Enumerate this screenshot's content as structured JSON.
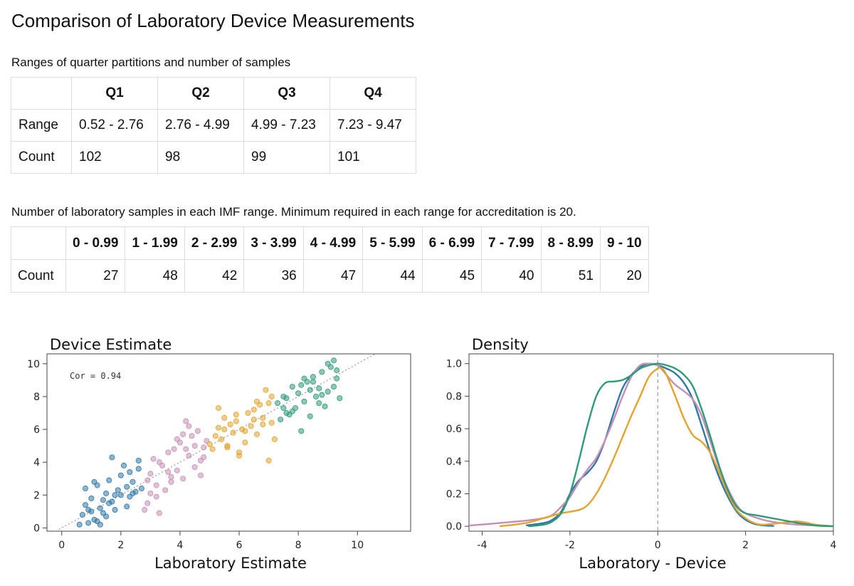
{
  "title": "Comparison of Laboratory Device Measurements",
  "quarter_table": {
    "caption": "Ranges of quarter partitions and number of samples",
    "headers": [
      "Q1",
      "Q2",
      "Q3",
      "Q4"
    ],
    "rows": [
      {
        "label": "Range",
        "cells": [
          "0.52 - 2.76",
          "2.76 - 4.99",
          "4.99 - 7.23",
          "7.23 - 9.47"
        ]
      },
      {
        "label": "Count",
        "cells": [
          "102",
          "98",
          "99",
          "101"
        ]
      }
    ]
  },
  "imf_table": {
    "caption": "Number of laboratory samples in each IMF range. Minimum required in each range for accreditation is 20.",
    "headers": [
      "0 - 0.99",
      "1 - 1.99",
      "2 - 2.99",
      "3 - 3.99",
      "4 - 4.99",
      "5 - 5.99",
      "6 - 6.99",
      "7 - 7.99",
      "8 - 8.99",
      "9 - 10"
    ],
    "rows": [
      {
        "label": "Count",
        "cells": [
          "27",
          "48",
          "42",
          "36",
          "47",
          "44",
          "45",
          "40",
          "51",
          "20"
        ]
      }
    ]
  },
  "colors": {
    "Q1": "#2f78a8",
    "Q2": "#c58fb4",
    "Q3": "#e2a42f",
    "Q4": "#2f9a7a"
  },
  "chart_data": [
    {
      "type": "scatter",
      "title": "Device Estimate",
      "xlabel": "Laboratory Estimate",
      "ylabel": "",
      "annotation": "Cor = 0.94",
      "xlim": [
        -0.5,
        11.8
      ],
      "ylim": [
        -0.2,
        10.6
      ],
      "xticks": [
        0,
        2,
        4,
        6,
        8,
        10
      ],
      "yticks": [
        0,
        2,
        4,
        6,
        8,
        10
      ],
      "reference_line": "y = x (dotted)",
      "series": [
        {
          "group": "Q1",
          "x": [
            0.6,
            0.7,
            0.8,
            0.9,
            1.0,
            1.1,
            1.2,
            1.3,
            1.4,
            1.5,
            1.6,
            1.7,
            1.8,
            1.9,
            2.0,
            2.1,
            2.2,
            2.3,
            2.4,
            2.5,
            2.6,
            2.7,
            0.8,
            1.0,
            1.2,
            1.4,
            1.6,
            1.8,
            2.0,
            2.2,
            2.4,
            1.1,
            1.3,
            1.5,
            0.9,
            1.7,
            2.3,
            2.6
          ],
          "y": [
            0.2,
            0.8,
            1.4,
            0.3,
            1.8,
            0.5,
            2.6,
            1.2,
            0.9,
            2.1,
            1.5,
            4.3,
            1.1,
            2.3,
            2.0,
            3.8,
            2.5,
            1.9,
            2.8,
            2.2,
            3.6,
            2.4,
            2.4,
            1.0,
            0.4,
            1.7,
            2.9,
            2.0,
            3.2,
            1.3,
            2.1,
            2.8,
            0.2,
            0.7,
            1.1,
            1.6,
            3.4,
            4.1
          ]
        },
        {
          "group": "Q2",
          "x": [
            2.8,
            2.9,
            3.0,
            3.1,
            3.2,
            3.3,
            3.4,
            3.5,
            3.6,
            3.7,
            3.8,
            3.9,
            4.0,
            4.1,
            4.2,
            4.3,
            4.4,
            4.5,
            4.6,
            4.7,
            4.8,
            4.9,
            3.0,
            3.3,
            3.6,
            3.9,
            4.2,
            4.5,
            4.8,
            3.2,
            3.7,
            4.3,
            4.7,
            2.9,
            4.1
          ],
          "y": [
            1.1,
            2.9,
            3.3,
            4.2,
            2.6,
            0.9,
            3.8,
            2.3,
            4.6,
            3.1,
            4.8,
            3.5,
            5.2,
            3.0,
            6.5,
            4.4,
            5.6,
            3.7,
            5.9,
            4.1,
            4.9,
            5.3,
            2.1,
            4.0,
            3.4,
            5.4,
            4.8,
            5.0,
            4.3,
            1.9,
            2.8,
            6.2,
            3.2,
            1.5,
            5.7
          ]
        },
        {
          "group": "Q3",
          "x": [
            5.0,
            5.1,
            5.2,
            5.3,
            5.4,
            5.5,
            5.6,
            5.7,
            5.8,
            5.9,
            6.0,
            6.1,
            6.2,
            6.3,
            6.4,
            6.5,
            6.6,
            6.7,
            6.8,
            6.9,
            7.0,
            7.1,
            7.2,
            5.3,
            5.6,
            5.9,
            6.2,
            6.5,
            6.8,
            7.1,
            5.5,
            6.0,
            6.6,
            7.0
          ],
          "y": [
            5.1,
            4.8,
            5.6,
            7.3,
            5.4,
            6.0,
            5.0,
            6.3,
            5.8,
            6.5,
            4.6,
            6.0,
            5.9,
            7.0,
            6.2,
            6.6,
            5.7,
            7.5,
            6.7,
            8.4,
            7.6,
            6.4,
            5.4,
            6.1,
            4.9,
            6.9,
            5.2,
            7.2,
            6.3,
            8.0,
            6.7,
            4.4,
            7.7,
            4.1
          ]
        },
        {
          "group": "Q4",
          "x": [
            7.3,
            7.4,
            7.5,
            7.6,
            7.7,
            7.8,
            7.9,
            8.0,
            8.1,
            8.2,
            8.3,
            8.4,
            8.5,
            8.6,
            8.7,
            8.8,
            8.9,
            9.0,
            9.1,
            9.2,
            9.3,
            9.4,
            7.5,
            7.8,
            8.1,
            8.4,
            8.7,
            9.0,
            9.3,
            7.6,
            8.2,
            8.8,
            9.2,
            8.5
          ],
          "y": [
            7.6,
            6.6,
            8.0,
            7.9,
            6.9,
            8.6,
            7.3,
            8.2,
            5.9,
            7.7,
            8.9,
            6.8,
            9.2,
            8.0,
            8.5,
            9.5,
            7.4,
            8.3,
            9.8,
            8.6,
            9.1,
            7.9,
            7.3,
            7.1,
            8.7,
            8.4,
            7.6,
            10.0,
            9.6,
            7.0,
            9.1,
            8.1,
            10.2,
            8.9
          ]
        }
      ]
    },
    {
      "type": "line",
      "title": "Density",
      "xlabel": "Laboratory - Device",
      "ylabel": "",
      "xlim": [
        -4.3,
        4.0
      ],
      "ylim": [
        -0.03,
        1.06
      ],
      "xticks": [
        -4,
        -2,
        0,
        2,
        4
      ],
      "yticks": [
        0.0,
        0.2,
        0.4,
        0.6,
        0.8,
        1.0
      ],
      "reference_line": "x = 0 (dashed)",
      "series": [
        {
          "group": "Q1",
          "x": [
            -3.0,
            -2.6,
            -2.4,
            -2.2,
            -2.0,
            -1.8,
            -1.6,
            -1.4,
            -1.2,
            -1.0,
            -0.8,
            -0.6,
            -0.4,
            -0.2,
            0.0,
            0.2,
            0.4,
            0.6,
            0.8,
            1.0,
            1.2,
            1.4,
            1.6,
            1.8,
            2.0,
            2.2,
            2.4,
            2.65
          ],
          "y": [
            0.005,
            0.02,
            0.04,
            0.09,
            0.2,
            0.28,
            0.33,
            0.4,
            0.53,
            0.7,
            0.85,
            0.93,
            0.98,
            1.0,
            0.99,
            0.97,
            0.94,
            0.88,
            0.78,
            0.62,
            0.45,
            0.3,
            0.18,
            0.09,
            0.04,
            0.015,
            0.006,
            0.002
          ]
        },
        {
          "group": "Q2",
          "x": [
            -4.3,
            -3.8,
            -3.4,
            -3.0,
            -2.6,
            -2.4,
            -2.2,
            -2.0,
            -1.8,
            -1.6,
            -1.4,
            -1.2,
            -1.0,
            -0.8,
            -0.6,
            -0.4,
            -0.2,
            0.0,
            0.2,
            0.4,
            0.6,
            0.8,
            1.0,
            1.2,
            1.4,
            1.6,
            1.8,
            2.0,
            2.4,
            2.8,
            3.2,
            3.6,
            4.0
          ],
          "y": [
            0.005,
            0.015,
            0.025,
            0.035,
            0.05,
            0.07,
            0.12,
            0.18,
            0.27,
            0.35,
            0.42,
            0.53,
            0.66,
            0.8,
            0.92,
            0.99,
            1.0,
            0.99,
            0.93,
            0.87,
            0.83,
            0.78,
            0.68,
            0.52,
            0.36,
            0.23,
            0.13,
            0.08,
            0.04,
            0.02,
            0.01,
            0.005,
            0.002
          ]
        },
        {
          "group": "Q3",
          "x": [
            -3.6,
            -3.0,
            -2.6,
            -2.2,
            -1.8,
            -1.6,
            -1.4,
            -1.2,
            -1.0,
            -0.8,
            -0.6,
            -0.4,
            -0.2,
            0.0,
            0.1,
            0.2,
            0.4,
            0.6,
            0.8,
            1.0,
            1.2,
            1.4,
            1.6,
            1.8,
            2.0,
            2.2,
            2.4,
            2.8,
            3.2,
            3.6,
            4.0
          ],
          "y": [
            0.0,
            0.02,
            0.05,
            0.08,
            0.1,
            0.13,
            0.2,
            0.3,
            0.42,
            0.55,
            0.68,
            0.8,
            0.92,
            0.97,
            0.97,
            0.93,
            0.8,
            0.66,
            0.56,
            0.52,
            0.45,
            0.33,
            0.2,
            0.1,
            0.05,
            0.02,
            0.01,
            0.02,
            0.03,
            0.01,
            0.0
          ]
        },
        {
          "group": "Q4",
          "x": [
            -2.95,
            -2.6,
            -2.4,
            -2.2,
            -2.0,
            -1.8,
            -1.6,
            -1.4,
            -1.2,
            -1.0,
            -0.8,
            -0.6,
            -0.4,
            -0.2,
            0.0,
            0.2,
            0.4,
            0.6,
            0.8,
            1.0,
            1.2,
            1.4,
            1.6,
            1.8,
            2.0,
            2.2,
            2.4,
            2.8,
            3.2,
            3.6,
            4.0
          ],
          "y": [
            0.0,
            0.01,
            0.03,
            0.08,
            0.2,
            0.4,
            0.62,
            0.8,
            0.88,
            0.89,
            0.9,
            0.93,
            0.97,
            0.99,
            1.0,
            0.99,
            0.97,
            0.93,
            0.86,
            0.72,
            0.55,
            0.37,
            0.22,
            0.12,
            0.08,
            0.07,
            0.06,
            0.04,
            0.02,
            0.005,
            0.0
          ]
        }
      ]
    }
  ]
}
